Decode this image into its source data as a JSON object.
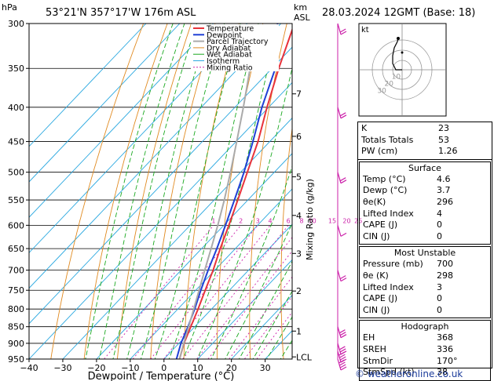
{
  "header": {
    "location": "53°21'N  357°17'W  176m  ASL",
    "date": "28.03.2024  12GMT  (Base: 18)",
    "hpa_label": "hPa",
    "km_label": "km",
    "asl_label": "ASL"
  },
  "chart_data": {
    "type": "line",
    "xlabel": "Dewpoint / Temperature (°C)",
    "ylabel": "",
    "right_axis_label": "Mixing Ratio (g/kg)",
    "xlim": [
      -40,
      38
    ],
    "ylim": [
      950,
      300
    ],
    "x_ticks": [
      -40,
      -30,
      -20,
      -10,
      0,
      10,
      20,
      30
    ],
    "pressure_levels": [
      300,
      350,
      400,
      450,
      500,
      550,
      600,
      650,
      700,
      750,
      800,
      850,
      900,
      950
    ],
    "km_ticks": [
      {
        "label": "LCL",
        "p": 943
      },
      {
        "label": "1",
        "p": 863
      },
      {
        "label": "2",
        "p": 752
      },
      {
        "label": "3",
        "p": 661
      },
      {
        "label": "4",
        "p": 580
      },
      {
        "label": "5",
        "p": 508
      },
      {
        "label": "6",
        "p": 442
      },
      {
        "label": "7",
        "p": 382
      }
    ],
    "mixing_ratio_labels": [
      "1",
      "2",
      "3",
      "4",
      "6",
      "8",
      "10",
      "15",
      "20",
      "25"
    ],
    "mixing_ratio_values": [
      1,
      2,
      3,
      4,
      6,
      8,
      10,
      15,
      20,
      25
    ],
    "series": [
      {
        "name": "Temperature",
        "points": [
          [
            950,
            4.6
          ],
          [
            900,
            1.5
          ],
          [
            850,
            -1.2
          ],
          [
            800,
            -4.0
          ],
          [
            750,
            -7.2
          ],
          [
            700,
            -10.5
          ],
          [
            650,
            -14.5
          ],
          [
            600,
            -18.5
          ],
          [
            550,
            -23.0
          ],
          [
            500,
            -28.0
          ],
          [
            450,
            -33.5
          ],
          [
            400,
            -40.5
          ],
          [
            350,
            -48.0
          ],
          [
            300,
            -56.0
          ]
        ]
      },
      {
        "name": "Dewpoint",
        "points": [
          [
            950,
            3.7
          ],
          [
            900,
            0.6
          ],
          [
            850,
            -2.0
          ],
          [
            800,
            -5.0
          ],
          [
            750,
            -8.5
          ],
          [
            700,
            -12.0
          ],
          [
            650,
            -15.5
          ],
          [
            600,
            -19.5
          ],
          [
            550,
            -24.0
          ],
          [
            500,
            -29.0
          ],
          [
            450,
            -35.0
          ],
          [
            400,
            -42.0
          ],
          [
            350,
            -49.0
          ],
          [
            300,
            -61.0
          ]
        ]
      },
      {
        "name": "Parcel Trajectory",
        "points": [
          [
            950,
            4.6
          ],
          [
            900,
            1.4
          ],
          [
            850,
            -1.8
          ],
          [
            800,
            -5.3
          ],
          [
            750,
            -9.0
          ],
          [
            700,
            -13.0
          ],
          [
            650,
            -17.2
          ],
          [
            600,
            -21.8
          ],
          [
            550,
            -27.0
          ],
          [
            500,
            -33.0
          ],
          [
            450,
            -39.8
          ],
          [
            400,
            -47.5
          ],
          [
            350,
            -56.5
          ]
        ]
      }
    ],
    "legend": [
      "Temperature",
      "Dewpoint",
      "Parcel Trajectory",
      "Dry Adiabat",
      "Wet Adiabat",
      "Isotherm",
      "Mixing Ratio"
    ],
    "legend_position": "top-left",
    "wind_barbs": [
      {
        "p": 950,
        "speed": 38
      },
      {
        "p": 925,
        "speed": 35
      },
      {
        "p": 900,
        "speed": 30
      },
      {
        "p": 850,
        "speed": 25
      },
      {
        "p": 700,
        "speed": 20
      },
      {
        "p": 600,
        "speed": 10
      },
      {
        "p": 500,
        "speed": 15
      },
      {
        "p": 400,
        "speed": 20
      },
      {
        "p": 300,
        "speed": 20
      }
    ]
  },
  "hodograph": {
    "label": "kt",
    "ring_labels": [
      "10",
      "20",
      "30"
    ]
  },
  "indices": {
    "top": [
      {
        "k": "K",
        "v": "23"
      },
      {
        "k": "Totals Totals",
        "v": "53"
      },
      {
        "k": "PW (cm)",
        "v": "1.26"
      }
    ],
    "surface_title": "Surface",
    "surface": [
      {
        "k": "Temp (°C)",
        "v": "4.6"
      },
      {
        "k": "Dewp (°C)",
        "v": "3.7"
      },
      {
        "k": "θe(K)",
        "v": "296"
      },
      {
        "k": "Lifted Index",
        "v": "4"
      },
      {
        "k": "CAPE (J)",
        "v": "0"
      },
      {
        "k": "CIN (J)",
        "v": "0"
      }
    ],
    "mu_title": "Most Unstable",
    "mu": [
      {
        "k": "Pressure (mb)",
        "v": "700"
      },
      {
        "k": "θe (K)",
        "v": "298"
      },
      {
        "k": "Lifted Index",
        "v": "3"
      },
      {
        "k": "CAPE (J)",
        "v": "0"
      },
      {
        "k": "CIN (J)",
        "v": "0"
      }
    ],
    "hodo_title": "Hodograph",
    "hodo": [
      {
        "k": "EH",
        "v": "368"
      },
      {
        "k": "SREH",
        "v": "336"
      },
      {
        "k": "StmDir",
        "v": "170°"
      },
      {
        "k": "StmSpd (kt)",
        "v": "38"
      }
    ]
  },
  "footer": "© weatheronline.co.uk",
  "colors": {
    "temperature": "#e8323a",
    "dewpoint": "#1f3fd6",
    "parcel": "#aaaaaa",
    "dry_adiabat": "#e08a20",
    "wet_adiabat": "#18a81e",
    "isotherm": "#2aa8e0",
    "mixing_ratio": "#cc22aa"
  }
}
